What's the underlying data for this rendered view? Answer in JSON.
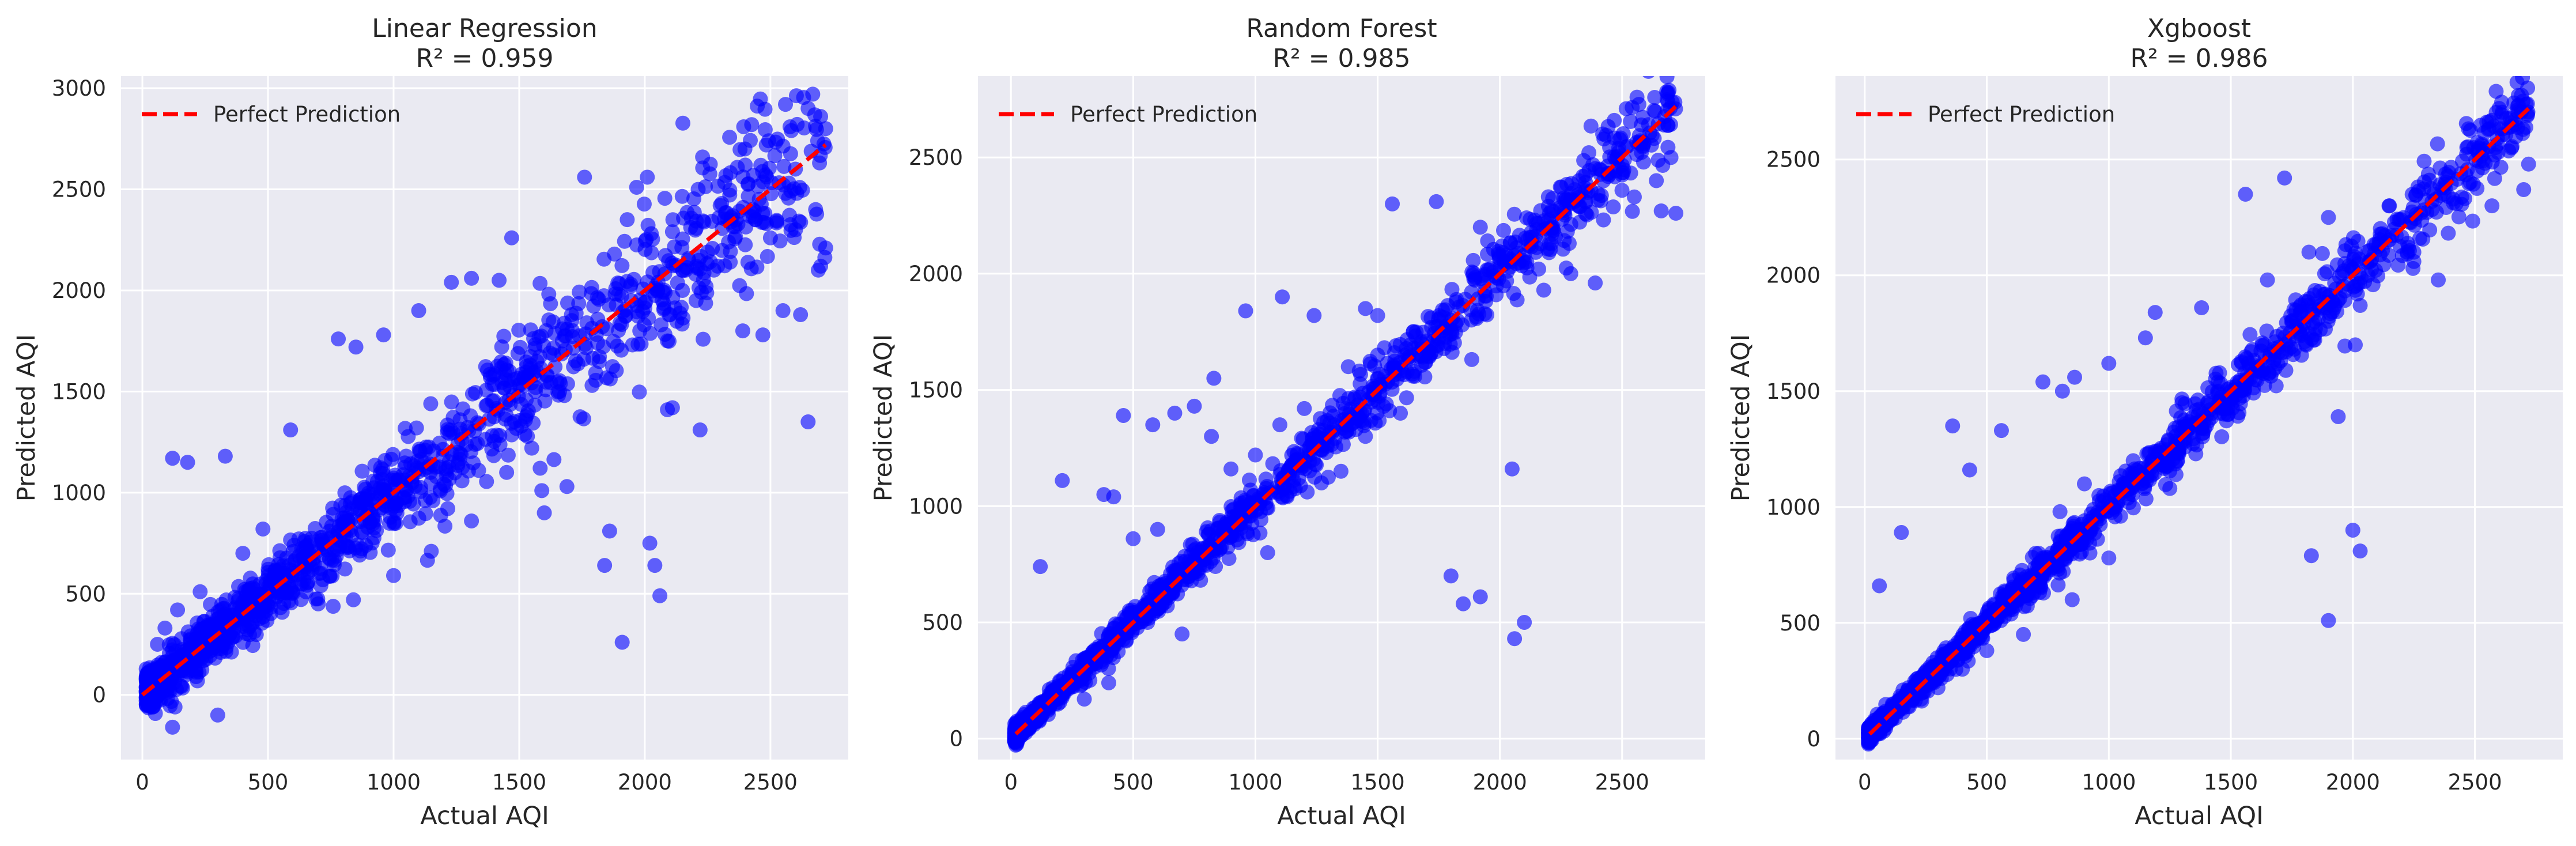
{
  "chart_data": [
    {
      "type": "scatter",
      "title": "Linear Regression",
      "subtitle": "R² = 0.959",
      "xlabel": "Actual AQI",
      "ylabel": "Predicted AQI",
      "xlim": [
        -85,
        2810
      ],
      "ylim": [
        -320,
        3060
      ],
      "xticks": [
        0,
        500,
        1000,
        1500,
        2000,
        2500
      ],
      "yticks": [
        0,
        500,
        1000,
        1500,
        2000,
        2500,
        3000
      ],
      "legend": {
        "label": "Perfect Prediction",
        "location": "upper-left"
      },
      "reference_line": {
        "from": [
          0,
          0
        ],
        "to": [
          2720,
          2720
        ],
        "style": "dashed",
        "color": "#ff0000"
      },
      "marker_color": "#0000ff",
      "grid": true,
      "background": "#eaeaf2",
      "seed": 11,
      "spread": {
        "base": 45,
        "slope": 0.07
      },
      "highlight_points": [
        [
          120,
          1170
        ],
        [
          180,
          1150
        ],
        [
          330,
          1180
        ],
        [
          590,
          1310
        ],
        [
          780,
          1760
        ],
        [
          850,
          1720
        ],
        [
          960,
          1780
        ],
        [
          1100,
          1900
        ],
        [
          1230,
          2040
        ],
        [
          1310,
          2060
        ],
        [
          1420,
          2050
        ],
        [
          1470,
          2260
        ],
        [
          1760,
          2560
        ],
        [
          1930,
          2350
        ],
        [
          2010,
          2560
        ],
        [
          2110,
          2290
        ],
        [
          2230,
          2660
        ],
        [
          2400,
          2620
        ],
        [
          2560,
          2920
        ],
        [
          2650,
          2900
        ],
        [
          2700,
          2860
        ],
        [
          2720,
          2800
        ],
        [
          1590,
          1010
        ],
        [
          1600,
          900
        ],
        [
          1690,
          1030
        ],
        [
          1860,
          810
        ],
        [
          1840,
          640
        ],
        [
          1910,
          260
        ],
        [
          2020,
          750
        ],
        [
          2040,
          640
        ],
        [
          2060,
          490
        ],
        [
          2090,
          1410
        ],
        [
          2110,
          1420
        ],
        [
          2220,
          1310
        ],
        [
          2650,
          1350
        ],
        [
          2390,
          1800
        ],
        [
          2470,
          1780
        ],
        [
          2550,
          1900
        ],
        [
          2620,
          1880
        ],
        [
          2700,
          2120
        ],
        [
          2720,
          2210
        ],
        [
          130,
          -60
        ],
        [
          120,
          -160
        ],
        [
          40,
          -60
        ],
        [
          300,
          -100
        ],
        [
          230,
          510
        ],
        [
          140,
          420
        ],
        [
          90,
          330
        ],
        [
          60,
          250
        ],
        [
          400,
          700
        ],
        [
          480,
          820
        ],
        [
          700,
          450
        ],
        [
          840,
          470
        ],
        [
          1000,
          590
        ],
        [
          1150,
          710
        ],
        [
          1310,
          860
        ],
        [
          1450,
          1100
        ],
        [
          1550,
          1220
        ],
        [
          1680,
          1480
        ],
        [
          1790,
          1530
        ],
        [
          2250,
          2190
        ],
        [
          2340,
          2140
        ],
        [
          2500,
          2260
        ],
        [
          2600,
          2300
        ],
        [
          2680,
          2400
        ],
        [
          2560,
          2480
        ],
        [
          2440,
          2350
        ],
        [
          2300,
          2420
        ],
        [
          2150,
          2000
        ],
        [
          1980,
          1800
        ]
      ]
    },
    {
      "type": "scatter",
      "title": "Random Forest",
      "subtitle": "R² = 0.985",
      "xlabel": "Actual AQI",
      "ylabel": "Predicted AQI",
      "xlim": [
        -135,
        2840
      ],
      "ylim": [
        -90,
        2850
      ],
      "xticks": [
        0,
        500,
        1000,
        1500,
        2000,
        2500
      ],
      "yticks": [
        0,
        500,
        1000,
        1500,
        2000,
        2500
      ],
      "legend": {
        "label": "Perfect Prediction",
        "location": "upper-left"
      },
      "reference_line": {
        "from": [
          20,
          20
        ],
        "to": [
          2720,
          2720
        ],
        "style": "dashed",
        "color": "#ff0000"
      },
      "marker_color": "#0000ff",
      "grid": true,
      "background": "#eaeaf2",
      "seed": 23,
      "spread": {
        "base": 18,
        "slope": 0.03
      },
      "highlight_points": [
        [
          120,
          740
        ],
        [
          210,
          1110
        ],
        [
          460,
          1390
        ],
        [
          580,
          1350
        ],
        [
          670,
          1400
        ],
        [
          750,
          1430
        ],
        [
          830,
          1550
        ],
        [
          960,
          1840
        ],
        [
          1110,
          1900
        ],
        [
          1240,
          1820
        ],
        [
          1380,
          1600
        ],
        [
          1450,
          1850
        ],
        [
          1500,
          1820
        ],
        [
          1560,
          2300
        ],
        [
          1740,
          2310
        ],
        [
          1920,
          2200
        ],
        [
          1800,
          700
        ],
        [
          1850,
          580
        ],
        [
          1920,
          610
        ],
        [
          2050,
          1160
        ],
        [
          2060,
          430
        ],
        [
          2100,
          500
        ],
        [
          2150,
          2190
        ],
        [
          2290,
          2000
        ],
        [
          2390,
          1960
        ],
        [
          2480,
          2500
        ],
        [
          2550,
          2330
        ],
        [
          2640,
          2400
        ],
        [
          2700,
          2500
        ],
        [
          2720,
          2260
        ],
        [
          2660,
          2270
        ],
        [
          2590,
          2560
        ],
        [
          2350,
          2310
        ],
        [
          1270,
          1100
        ],
        [
          1050,
          800
        ],
        [
          700,
          450
        ],
        [
          400,
          240
        ],
        [
          300,
          170
        ],
        [
          1000,
          1220
        ],
        [
          1200,
          1420
        ],
        [
          1350,
          1150
        ],
        [
          1450,
          1300
        ],
        [
          600,
          900
        ],
        [
          500,
          860
        ],
        [
          420,
          1040
        ],
        [
          380,
          1050
        ],
        [
          820,
          1300
        ],
        [
          900,
          1160
        ],
        [
          1100,
          1350
        ],
        [
          1500,
          1650
        ],
        [
          1650,
          1580
        ],
        [
          1750,
          1720
        ],
        [
          2000,
          2050
        ],
        [
          2100,
          2080
        ],
        [
          2200,
          2230
        ]
      ]
    },
    {
      "type": "scatter",
      "title": "Xgboost",
      "subtitle": "R² = 0.986",
      "xlabel": "Actual AQI",
      "ylabel": "Predicted AQI",
      "xlim": [
        -120,
        2860
      ],
      "ylim": [
        -90,
        2860
      ],
      "xticks": [
        0,
        500,
        1000,
        1500,
        2000,
        2500
      ],
      "yticks": [
        0,
        500,
        1000,
        1500,
        2000,
        2500
      ],
      "legend": {
        "label": "Perfect Prediction",
        "location": "upper-left"
      },
      "reference_line": {
        "from": [
          20,
          20
        ],
        "to": [
          2720,
          2720
        ],
        "style": "dashed",
        "color": "#ff0000"
      },
      "marker_color": "#0000ff",
      "grid": true,
      "background": "#eaeaf2",
      "seed": 37,
      "spread": {
        "base": 18,
        "slope": 0.028
      },
      "highlight_points": [
        [
          150,
          890
        ],
        [
          60,
          660
        ],
        [
          360,
          1350
        ],
        [
          430,
          1160
        ],
        [
          560,
          1330
        ],
        [
          730,
          1540
        ],
        [
          810,
          1500
        ],
        [
          860,
          1560
        ],
        [
          1000,
          1620
        ],
        [
          1150,
          1730
        ],
        [
          1190,
          1840
        ],
        [
          1380,
          1860
        ],
        [
          1560,
          2350
        ],
        [
          1650,
          1980
        ],
        [
          1720,
          2420
        ],
        [
          1820,
          2100
        ],
        [
          1830,
          790
        ],
        [
          1900,
          510
        ],
        [
          1940,
          1390
        ],
        [
          2000,
          900
        ],
        [
          2030,
          810
        ],
        [
          2010,
          1700
        ],
        [
          2030,
          1870
        ],
        [
          2250,
          2100
        ],
        [
          2350,
          1980
        ],
        [
          2510,
          2450
        ],
        [
          2570,
          2300
        ],
        [
          2700,
          2370
        ],
        [
          2720,
          2480
        ],
        [
          2650,
          2550
        ],
        [
          1900,
          2250
        ],
        [
          2150,
          2300
        ],
        [
          1400,
          1350
        ],
        [
          1250,
          1080
        ],
        [
          1000,
          780
        ],
        [
          850,
          600
        ],
        [
          650,
          450
        ],
        [
          500,
          380
        ],
        [
          400,
          300
        ],
        [
          300,
          220
        ],
        [
          1300,
          1450
        ],
        [
          1450,
          1500
        ],
        [
          1600,
          1550
        ],
        [
          700,
          800
        ],
        [
          800,
          980
        ],
        [
          900,
          1100
        ],
        [
          1100,
          1200
        ]
      ]
    }
  ]
}
